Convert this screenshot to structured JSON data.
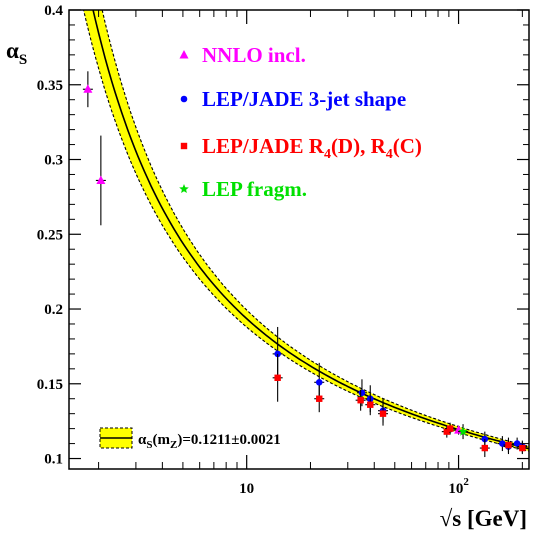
{
  "chart_data": {
    "type": "scatter",
    "x_scale": "log",
    "xlim": [
      1.45,
      215
    ],
    "ylim": [
      0.093,
      0.4
    ],
    "xlabel_prefix": "√s",
    "xlabel_unit": "[GeV]",
    "ylabel_main": "α",
    "ylabel_sub": "S",
    "x_ticks": [
      {
        "value": 10,
        "label": "10",
        "sup": ""
      },
      {
        "value": 100,
        "label": "10",
        "sup": "2"
      }
    ],
    "y_ticks": [
      {
        "value": 0.1,
        "label": "0.1"
      },
      {
        "value": 0.15,
        "label": "0.15"
      },
      {
        "value": 0.2,
        "label": "0.2"
      },
      {
        "value": 0.25,
        "label": "0.25"
      },
      {
        "value": 0.3,
        "label": "0.3"
      },
      {
        "value": 0.35,
        "label": "0.35"
      },
      {
        "value": 0.4,
        "label": "0.4"
      }
    ],
    "band": {
      "central_alpha_mz": 0.1211,
      "error": 0.0021,
      "mz": 91.1876,
      "fill_color": "#ffff00",
      "line_color": "#000000",
      "legend_text": "α",
      "legend_sub_s": "S",
      "legend_arg_open": "(m",
      "legend_sub_z": "Z",
      "legend_arg_close": ")=0.1211±0.0021"
    },
    "series": [
      {
        "name": "NNLO incl.",
        "marker": "triangle",
        "color": "#ff00ff",
        "points": [
          {
            "x": 1.78,
            "y": 0.347,
            "err": 0.012
          },
          {
            "x": 2.05,
            "y": 0.286,
            "err": 0.03
          },
          {
            "x": 100.0,
            "y": 0.119,
            "err": 0.003
          }
        ]
      },
      {
        "name": "LEP/JADE 3-jet shape",
        "marker": "circle",
        "color": "#0000ff",
        "points": [
          {
            "x": 14.0,
            "y": 0.17,
            "err": 0.018
          },
          {
            "x": 22.0,
            "y": 0.151,
            "err": 0.013
          },
          {
            "x": 35.0,
            "y": 0.144,
            "err": 0.009
          },
          {
            "x": 38.3,
            "y": 0.14,
            "err": 0.009
          },
          {
            "x": 44.0,
            "y": 0.132,
            "err": 0.008
          },
          {
            "x": 91.2,
            "y": 0.12,
            "err": 0.004
          },
          {
            "x": 133.0,
            "y": 0.113,
            "err": 0.005
          },
          {
            "x": 161.0,
            "y": 0.11,
            "err": 0.005
          },
          {
            "x": 172.0,
            "y": 0.108,
            "err": 0.005
          },
          {
            "x": 189.0,
            "y": 0.11,
            "err": 0.004
          },
          {
            "x": 200.0,
            "y": 0.108,
            "err": 0.004
          }
        ]
      },
      {
        "name": "LEP/JADE R",
        "name_sub1": "4",
        "name_mid": "(D), R",
        "name_sub2": "4",
        "name_end": "(C)",
        "marker": "square",
        "color": "#ff0000",
        "points": [
          {
            "x": 14.0,
            "y": 0.154,
            "err": 0.016
          },
          {
            "x": 22.0,
            "y": 0.14,
            "err": 0.009
          },
          {
            "x": 34.5,
            "y": 0.139,
            "err": 0.007
          },
          {
            "x": 38.3,
            "y": 0.136,
            "err": 0.007
          },
          {
            "x": 44.0,
            "y": 0.13,
            "err": 0.008
          },
          {
            "x": 88.0,
            "y": 0.118,
            "err": 0.004
          },
          {
            "x": 91.2,
            "y": 0.12,
            "err": 0.003
          },
          {
            "x": 133.0,
            "y": 0.107,
            "err": 0.006
          },
          {
            "x": 172.0,
            "y": 0.109,
            "err": 0.005
          },
          {
            "x": 200.0,
            "y": 0.107,
            "err": 0.004
          }
        ]
      },
      {
        "name": "LEP fragm.",
        "marker": "star",
        "color": "#00e000",
        "points": [
          {
            "x": 105.0,
            "y": 0.118,
            "err": 0.005
          }
        ]
      }
    ]
  }
}
